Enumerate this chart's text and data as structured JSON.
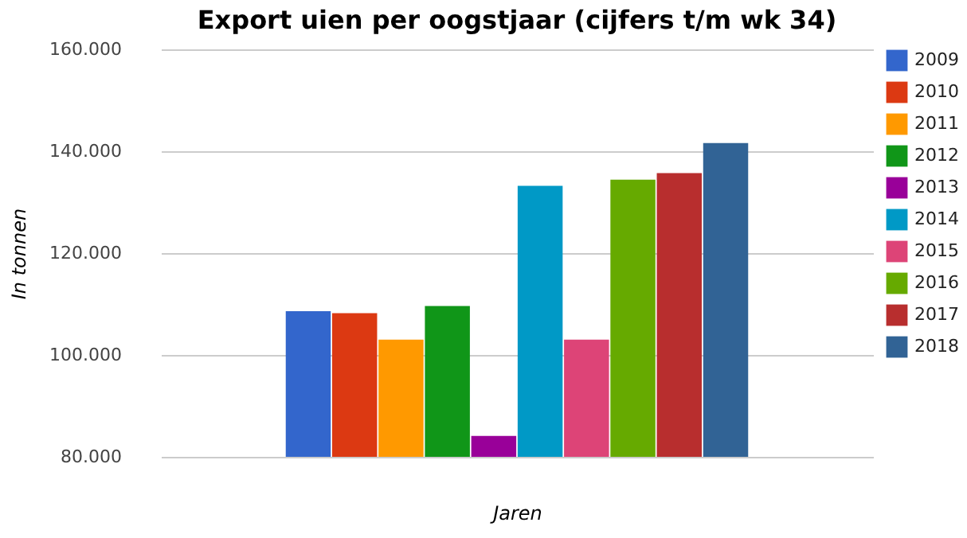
{
  "chart_data": {
    "type": "bar",
    "title": "Export uien per oogstjaar (cijfers t/m wk 34)",
    "xlabel": "Jaren",
    "ylabel": "In tonnen",
    "categories": [
      null
    ],
    "series": [
      {
        "name": "2009",
        "color": "#3366cc",
        "values": [
          108600
        ]
      },
      {
        "name": "2010",
        "color": "#dc3912",
        "values": [
          108200
        ]
      },
      {
        "name": "2011",
        "color": "#ff9900",
        "values": [
          103000
        ]
      },
      {
        "name": "2012",
        "color": "#109618",
        "values": [
          109600
        ]
      },
      {
        "name": "2013",
        "color": "#990099",
        "values": [
          84100
        ]
      },
      {
        "name": "2014",
        "color": "#0099c6",
        "values": [
          133200
        ]
      },
      {
        "name": "2015",
        "color": "#dd4477",
        "values": [
          103000
        ]
      },
      {
        "name": "2016",
        "color": "#66aa00",
        "values": [
          134400
        ]
      },
      {
        "name": "2017",
        "color": "#b82e2e",
        "values": [
          135700
        ]
      },
      {
        "name": "2018",
        "color": "#316395",
        "values": [
          141600
        ]
      }
    ],
    "ylim": [
      80000,
      160000
    ],
    "yticks": [
      {
        "value": 80000,
        "label": "80.000"
      },
      {
        "value": 100000,
        "label": "100.000"
      },
      {
        "value": 120000,
        "label": "120.000"
      },
      {
        "value": 140000,
        "label": "140.000"
      },
      {
        "value": 160000,
        "label": "160.000"
      }
    ],
    "grid": "y",
    "legend": "top right",
    "tick_labels": "y"
  }
}
